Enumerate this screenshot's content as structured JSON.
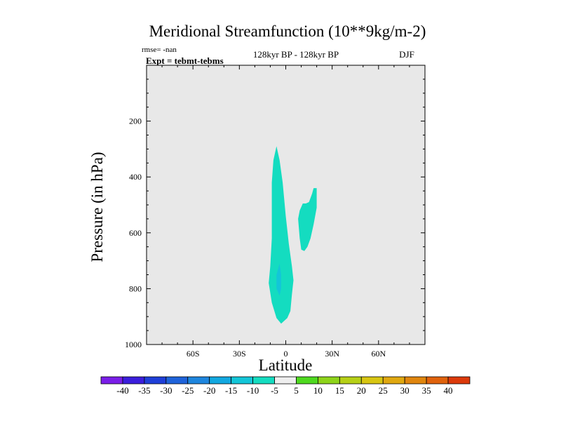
{
  "chart_data": {
    "type": "contour",
    "title": "Meridional Streamfunction (10**9kg/m-2)",
    "subtitle_left_1": "rmse= -nan",
    "subtitle_left_2": "Expt = tebmt-tebms",
    "subtitle_center": "128kyr BP - 128kyr BP",
    "subtitle_right": "DJF",
    "xlabel": "Latitude",
    "ylabel": "Pressure (in hPa)",
    "xlim": [
      -90,
      90
    ],
    "ylim": [
      1000,
      0
    ],
    "x_ticks": [
      {
        "value": -60,
        "label": "60S"
      },
      {
        "value": -30,
        "label": "30S"
      },
      {
        "value": 0,
        "label": "0"
      },
      {
        "value": 30,
        "label": "30N"
      },
      {
        "value": 60,
        "label": "60N"
      }
    ],
    "y_ticks": [
      {
        "value": 200,
        "label": "200"
      },
      {
        "value": 400,
        "label": "400"
      },
      {
        "value": 600,
        "label": "600"
      },
      {
        "value": 800,
        "label": "800"
      },
      {
        "value": 1000,
        "label": "1000"
      }
    ],
    "contour_levels": [
      -40,
      -35,
      -30,
      -25,
      -20,
      -15,
      -10,
      -5,
      5,
      10,
      15,
      20,
      25,
      30,
      35,
      40
    ],
    "colorbar_colors": [
      "#7a1ee8",
      "#3b1edc",
      "#1f3fd8",
      "#1f63da",
      "#1e86de",
      "#12a8e0",
      "#13c6d8",
      "#14dcc0",
      "#eeeeee",
      "#4ed91f",
      "#8ed41a",
      "#b6d016",
      "#d8c612",
      "#e0a810",
      "#e0860e",
      "#e0620c",
      "#dc3a0a"
    ],
    "shaded_regions": [
      {
        "name": "equatorial-cell",
        "level": "-10 to -5",
        "color": "#14dcc0",
        "outline": [
          [
            -6,
            290
          ],
          [
            -4,
            340
          ],
          [
            -2,
            420
          ],
          [
            0,
            540
          ],
          [
            2,
            640
          ],
          [
            4,
            720
          ],
          [
            5,
            770
          ],
          [
            4,
            820
          ],
          [
            3,
            880
          ],
          [
            1,
            905
          ],
          [
            -3,
            925
          ],
          [
            -6,
            905
          ],
          [
            -9,
            850
          ],
          [
            -11,
            780
          ],
          [
            -10,
            720
          ],
          [
            -9,
            620
          ],
          [
            -9,
            520
          ],
          [
            -9,
            420
          ],
          [
            -8,
            340
          ]
        ]
      },
      {
        "name": "equatorial-cell-core",
        "level": "-15 to -10",
        "color": "#13c6d8",
        "outline": [
          [
            -4,
            710
          ],
          [
            -3,
            750
          ],
          [
            -3,
            800
          ],
          [
            -4,
            825
          ],
          [
            -6,
            800
          ],
          [
            -6,
            750
          ]
        ]
      },
      {
        "name": "northern-cell",
        "level": "-10 to -5",
        "color": "#14dcc0",
        "outline": [
          [
            18,
            440
          ],
          [
            20,
            440
          ],
          [
            20,
            510
          ],
          [
            18,
            570
          ],
          [
            16,
            620
          ],
          [
            14,
            650
          ],
          [
            12,
            665
          ],
          [
            10,
            660
          ],
          [
            9,
            620
          ],
          [
            8,
            550
          ],
          [
            9,
            520
          ],
          [
            11,
            495
          ],
          [
            13,
            495
          ],
          [
            15,
            490
          ],
          [
            17,
            460
          ]
        ]
      }
    ],
    "background": "#e8e8e8"
  }
}
